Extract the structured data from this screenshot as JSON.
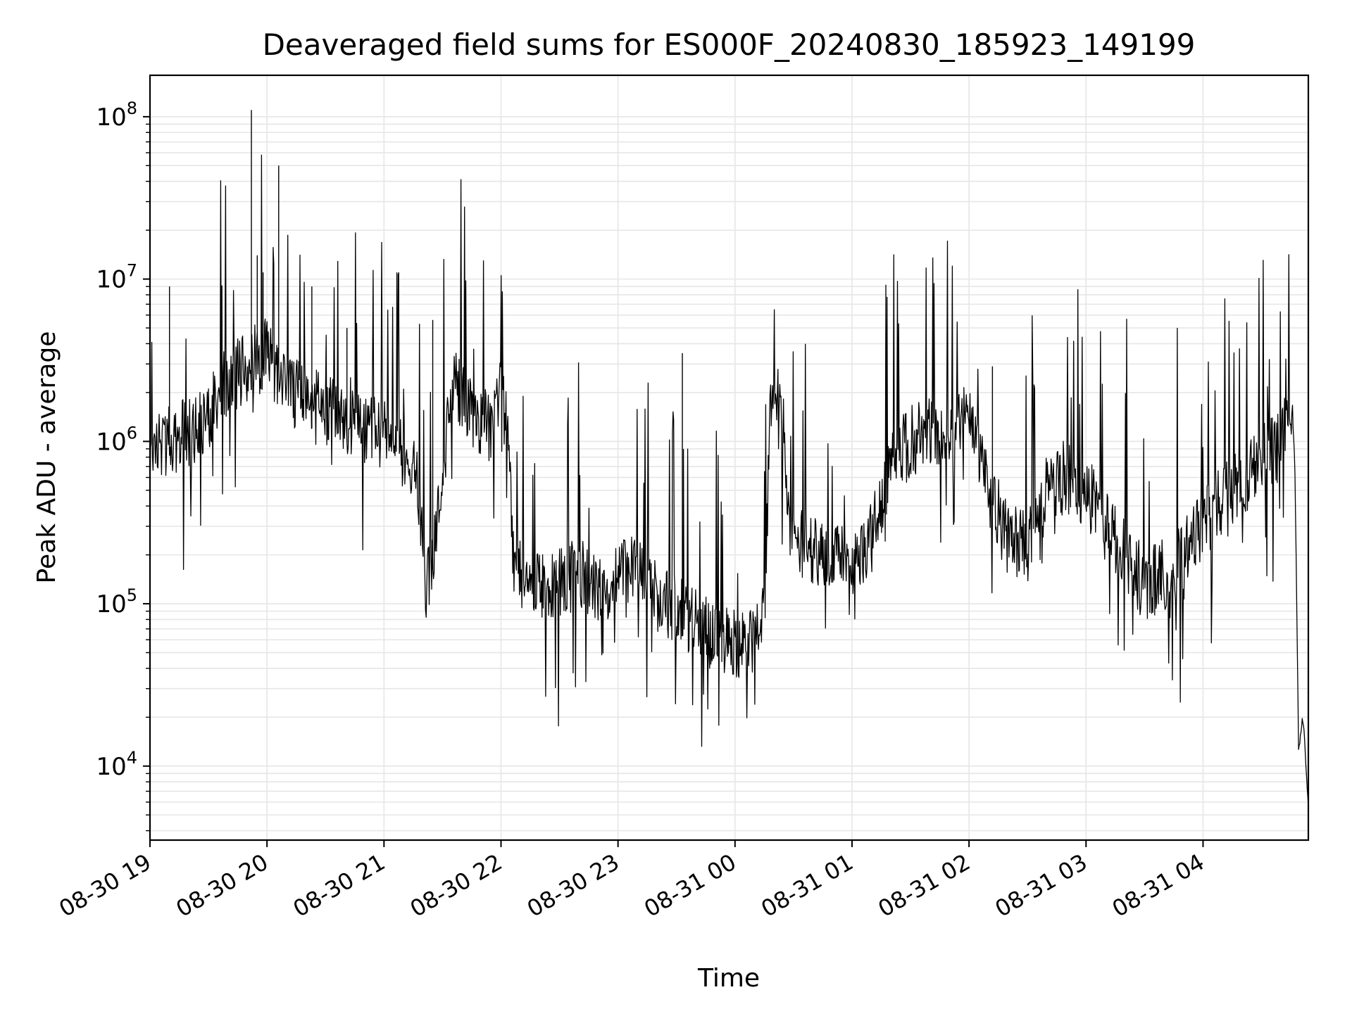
{
  "chart_data": {
    "type": "line",
    "title": "Deaveraged field sums for ES000F_20240830_185923_149199",
    "xlabel": "Time",
    "ylabel": "Peak ADU - average",
    "yscale": "log",
    "grid": true,
    "legend": "none",
    "line_color": "#000000",
    "grid_color": "#e6e6e6",
    "xlim": [
      "2024-08-30 19:00",
      "2024-08-31 04:54"
    ],
    "ylim": [
      3500,
      180000000
    ],
    "x_ticks": [
      {
        "t": "2024-08-30 19:00",
        "label": "08-30 19"
      },
      {
        "t": "2024-08-30 20:00",
        "label": "08-30 20"
      },
      {
        "t": "2024-08-30 21:00",
        "label": "08-30 21"
      },
      {
        "t": "2024-08-30 22:00",
        "label": "08-30 22"
      },
      {
        "t": "2024-08-30 23:00",
        "label": "08-30 23"
      },
      {
        "t": "2024-08-31 00:00",
        "label": "08-31 00"
      },
      {
        "t": "2024-08-31 01:00",
        "label": "08-31 01"
      },
      {
        "t": "2024-08-31 02:00",
        "label": "08-31 02"
      },
      {
        "t": "2024-08-31 03:00",
        "label": "08-31 03"
      },
      {
        "t": "2024-08-31 04:00",
        "label": "08-31 04"
      }
    ],
    "y_ticks": [
      {
        "value": 10000,
        "base": "10",
        "exp": "4"
      },
      {
        "value": 100000,
        "base": "10",
        "exp": "5"
      },
      {
        "value": 1000000,
        "base": "10",
        "exp": "6"
      },
      {
        "value": 10000000,
        "base": "10",
        "exp": "7"
      },
      {
        "value": 100000000,
        "base": "10",
        "exp": "8"
      }
    ],
    "series": [
      {
        "x": [
          "2024-08-30 19:00",
          "2024-08-30 19:05",
          "2024-08-30 19:10",
          "2024-08-30 19:20",
          "2024-08-30 19:30",
          "2024-08-30 19:40",
          "2024-08-30 19:50",
          "2024-08-30 20:00",
          "2024-08-30 20:10",
          "2024-08-30 20:20",
          "2024-08-30 20:30",
          "2024-08-30 20:40",
          "2024-08-30 20:50",
          "2024-08-30 21:00",
          "2024-08-30 21:10",
          "2024-08-30 21:15",
          "2024-08-30 21:18",
          "2024-08-30 21:22",
          "2024-08-30 21:25",
          "2024-08-30 21:28",
          "2024-08-30 21:35",
          "2024-08-30 21:45",
          "2024-08-30 21:55",
          "2024-08-30 22:00",
          "2024-08-30 22:04",
          "2024-08-30 22:06",
          "2024-08-30 22:10",
          "2024-08-30 22:20",
          "2024-08-30 22:30",
          "2024-08-30 22:40",
          "2024-08-30 22:50",
          "2024-08-30 23:00",
          "2024-08-30 23:10",
          "2024-08-30 23:20",
          "2024-08-30 23:30",
          "2024-08-30 23:40",
          "2024-08-30 23:50",
          "2024-08-31 00:00",
          "2024-08-31 00:10",
          "2024-08-31 00:15",
          "2024-08-31 00:18",
          "2024-08-31 00:22",
          "2024-08-31 00:25",
          "2024-08-31 00:28",
          "2024-08-31 00:32",
          "2024-08-31 00:40",
          "2024-08-31 00:50",
          "2024-08-31 01:00",
          "2024-08-31 01:10",
          "2024-08-31 01:20",
          "2024-08-31 01:30",
          "2024-08-31 01:40",
          "2024-08-31 01:50",
          "2024-08-31 02:00",
          "2024-08-31 02:06",
          "2024-08-31 02:10",
          "2024-08-31 02:20",
          "2024-08-31 02:30",
          "2024-08-31 02:40",
          "2024-08-31 02:50",
          "2024-08-31 03:00",
          "2024-08-31 03:10",
          "2024-08-31 03:20",
          "2024-08-31 03:30",
          "2024-08-31 03:40",
          "2024-08-31 03:50",
          "2024-08-31 04:00",
          "2024-08-31 04:10",
          "2024-08-31 04:20",
          "2024-08-31 04:30",
          "2024-08-31 04:38",
          "2024-08-31 04:42",
          "2024-08-31 04:44",
          "2024-08-31 04:46",
          "2024-08-31 04:47",
          "2024-08-31 04:48",
          "2024-08-31 04:49",
          "2024-08-31 04:50",
          "2024-08-31 04:51",
          "2024-08-31 04:52",
          "2024-08-31 04:53",
          "2024-08-31 04:54"
        ],
        "y": [
          800000,
          950000,
          1000000,
          1150000,
          1400000,
          2400000,
          2900000,
          3500000,
          2000000,
          1800000,
          1600000,
          1300000,
          1200000,
          1100000,
          900000,
          700000,
          500000,
          120000,
          200000,
          350000,
          2500000,
          1500000,
          1200000,
          2400000,
          900000,
          180000,
          150000,
          130000,
          140000,
          150000,
          130000,
          140000,
          200000,
          110000,
          90000,
          80000,
          60000,
          55000,
          60000,
          80000,
          1600000,
          1700000,
          1400000,
          250000,
          230000,
          220000,
          200000,
          180000,
          250000,
          700000,
          1000000,
          1100000,
          1200000,
          1500000,
          800000,
          500000,
          250000,
          220000,
          500000,
          600000,
          500000,
          300000,
          200000,
          130000,
          150000,
          200000,
          300000,
          450000,
          550000,
          800000,
          900000,
          1200000,
          1400000,
          1300000,
          800000,
          120000,
          12000,
          15000,
          20000,
          15000,
          9000,
          5500
        ]
      }
    ],
    "spikes": [
      {
        "x": "2024-08-30 19:10",
        "y": 9000000
      },
      {
        "x": "2024-08-30 19:52",
        "y": 110000000
      },
      {
        "x": "2024-08-30 19:55",
        "y": 14000000
      },
      {
        "x": "2024-08-30 19:58",
        "y": 11000000
      },
      {
        "x": "2024-08-30 20:06",
        "y": 50000000
      },
      {
        "x": "2024-08-30 20:23",
        "y": 9000000
      },
      {
        "x": "2024-08-30 20:41",
        "y": 5000000
      },
      {
        "x": "2024-08-30 21:25",
        "y": 5600000
      },
      {
        "x": "2024-08-30 23:33",
        "y": 3500000
      },
      {
        "x": "2024-08-31 02:12",
        "y": 2900000
      }
    ]
  }
}
